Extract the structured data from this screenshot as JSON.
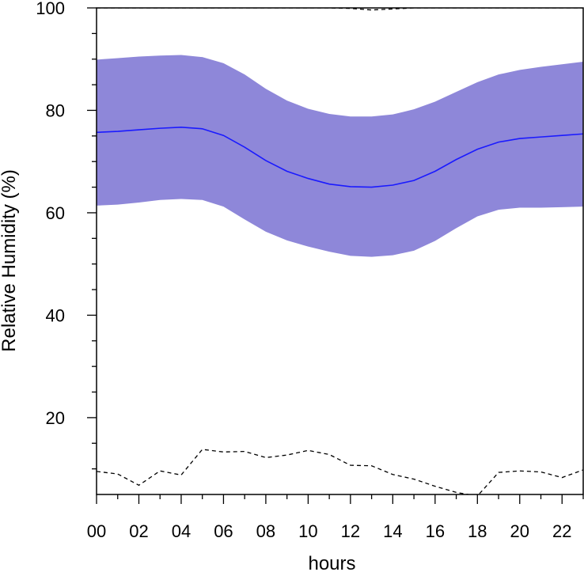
{
  "chart_data": {
    "type": "line",
    "title": "",
    "xlabel": "hours",
    "ylabel": "Relative Humidity (%)",
    "xlim": [
      0,
      23
    ],
    "ylim": [
      5,
      100
    ],
    "x_tick_labels": [
      "00",
      "02",
      "04",
      "06",
      "08",
      "10",
      "12",
      "14",
      "16",
      "18",
      "20",
      "22"
    ],
    "x_major_ticks": [
      0,
      2,
      4,
      6,
      8,
      10,
      12,
      14,
      16,
      18,
      20,
      22
    ],
    "x_minor_ticks": [
      1,
      3,
      5,
      7,
      9,
      11,
      13,
      15,
      17,
      19,
      21,
      23
    ],
    "y_tick_labels": [
      "20",
      "40",
      "60",
      "80",
      "100"
    ],
    "y_major_ticks": [
      20,
      40,
      60,
      80,
      100
    ],
    "y_minor_ticks": [
      10,
      15,
      25,
      30,
      35,
      45,
      50,
      55,
      65,
      70,
      75,
      85,
      90,
      95
    ],
    "grid": false,
    "x": [
      0,
      1,
      2,
      3,
      4,
      5,
      6,
      7,
      8,
      9,
      10,
      11,
      12,
      13,
      14,
      15,
      16,
      17,
      18,
      19,
      20,
      21,
      22,
      23
    ],
    "mean": [
      75.7,
      75.9,
      76.2,
      76.5,
      76.7,
      76.4,
      75.1,
      72.8,
      70.2,
      68.1,
      66.7,
      65.6,
      65.1,
      65.0,
      65.4,
      66.3,
      68.1,
      70.4,
      72.4,
      73.8,
      74.5,
      74.8,
      75.1,
      75.4
    ],
    "band_upper": [
      89.9,
      90.2,
      90.5,
      90.7,
      90.8,
      90.4,
      89.2,
      87.0,
      84.2,
      81.9,
      80.3,
      79.3,
      78.8,
      78.8,
      79.2,
      80.2,
      81.7,
      83.6,
      85.5,
      87.0,
      87.9,
      88.5,
      89.0,
      89.5
    ],
    "band_lower": [
      61.4,
      61.6,
      62.0,
      62.5,
      62.7,
      62.5,
      61.2,
      58.7,
      56.3,
      54.6,
      53.4,
      52.4,
      51.6,
      51.4,
      51.7,
      52.6,
      54.5,
      57.0,
      59.3,
      60.6,
      61.0,
      61.0,
      61.1,
      61.2
    ],
    "max_line": [
      100,
      100,
      100,
      100,
      100,
      100,
      100,
      100,
      100,
      100,
      100,
      100,
      99.9,
      99.6,
      99.8,
      100,
      100,
      100,
      100,
      100,
      100,
      100,
      100,
      100
    ],
    "min_line": [
      9.5,
      9.0,
      6.8,
      9.6,
      8.8,
      13.8,
      13.3,
      13.4,
      12.2,
      12.7,
      13.6,
      12.8,
      10.7,
      10.6,
      8.9,
      8.0,
      6.6,
      5.4,
      4.7,
      9.3,
      9.6,
      9.4,
      8.3,
      9.8
    ],
    "colors": {
      "band": "#8e87d9",
      "mean_line": "#1a1aff",
      "extreme_lines": "#000000",
      "axes": "#000000"
    }
  }
}
